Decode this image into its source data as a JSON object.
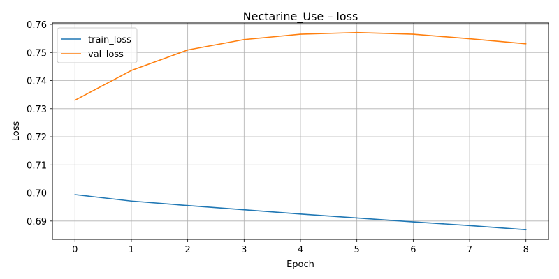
{
  "chart_data": {
    "type": "line",
    "title": "Nectarine_Use – loss",
    "xlabel": "Epoch",
    "ylabel": "Loss",
    "x": [
      0,
      1,
      2,
      3,
      4,
      5,
      6,
      7,
      8
    ],
    "xlim": [
      -0.4,
      8.4
    ],
    "ylim": [
      0.6835,
      0.7605
    ],
    "xticks": [
      0,
      1,
      2,
      3,
      4,
      5,
      6,
      7,
      8
    ],
    "yticks": [
      0.69,
      0.7,
      0.71,
      0.72,
      0.73,
      0.74,
      0.75,
      0.76
    ],
    "ytick_labels": [
      "0.69",
      "0.70",
      "0.71",
      "0.72",
      "0.73",
      "0.74",
      "0.75",
      "0.76"
    ],
    "grid": true,
    "legend_position": "top-left",
    "series": [
      {
        "name": "train_loss",
        "color": "#1f77b4",
        "values": [
          0.6994,
          0.6971,
          0.6955,
          0.694,
          0.6925,
          0.6911,
          0.6897,
          0.6884,
          0.6869
        ]
      },
      {
        "name": "val_loss",
        "color": "#ff7f0e",
        "values": [
          0.733,
          0.7436,
          0.7509,
          0.7546,
          0.7565,
          0.7571,
          0.7565,
          0.7549,
          0.7531
        ]
      }
    ]
  }
}
